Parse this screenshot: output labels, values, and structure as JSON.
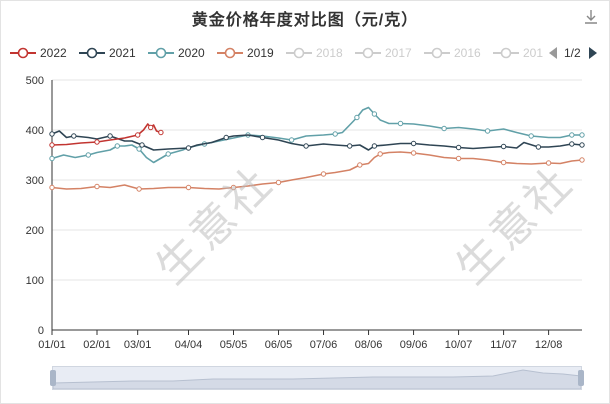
{
  "title": "黄金价格年度对比图（元/克）",
  "toolbar": {
    "download_icon": "download-icon"
  },
  "legend": {
    "items": [
      {
        "label": "2022",
        "color": "#c23531",
        "active": true
      },
      {
        "label": "2021",
        "color": "#2f4554",
        "active": true
      },
      {
        "label": "2020",
        "color": "#61a0a8",
        "active": true
      },
      {
        "label": "2019",
        "color": "#d48265",
        "active": true
      },
      {
        "label": "2018",
        "color": "#cccccc",
        "active": false
      },
      {
        "label": "2017",
        "color": "#cccccc",
        "active": false
      },
      {
        "label": "2016",
        "color": "#cccccc",
        "active": false
      },
      {
        "label": "201",
        "color": "#cccccc",
        "active": false
      }
    ],
    "page": "1/2"
  },
  "watermark": "生意社",
  "chart_data": {
    "type": "line",
    "ylim": [
      0,
      500
    ],
    "yticks": [
      0,
      100,
      200,
      300,
      400,
      500
    ],
    "x_ticks": [
      "01/01",
      "02/01",
      "03/01",
      "04/04",
      "05/05",
      "06/05",
      "07/06",
      "08/06",
      "09/06",
      "10/07",
      "11/07",
      "12/08"
    ],
    "x_day_range": [
      0,
      365
    ],
    "x_tick_days": [
      0,
      31,
      59,
      94,
      125,
      156,
      187,
      218,
      249,
      280,
      311,
      342
    ],
    "series": [
      {
        "name": "2022",
        "color": "#c23531",
        "points": [
          [
            0,
            370
          ],
          [
            10,
            371
          ],
          [
            20,
            374
          ],
          [
            31,
            376
          ],
          [
            40,
            380
          ],
          [
            50,
            384
          ],
          [
            59,
            390
          ],
          [
            63,
            400
          ],
          [
            66,
            412
          ],
          [
            68,
            405
          ],
          [
            70,
            410
          ],
          [
            72,
            398
          ],
          [
            75,
            395
          ]
        ]
      },
      {
        "name": "2021",
        "color": "#2f4554",
        "points": [
          [
            0,
            392
          ],
          [
            5,
            398
          ],
          [
            10,
            385
          ],
          [
            15,
            388
          ],
          [
            25,
            385
          ],
          [
            31,
            382
          ],
          [
            40,
            388
          ],
          [
            50,
            378
          ],
          [
            55,
            378
          ],
          [
            62,
            370
          ],
          [
            70,
            360
          ],
          [
            80,
            362
          ],
          [
            94,
            364
          ],
          [
            100,
            370
          ],
          [
            110,
            375
          ],
          [
            120,
            385
          ],
          [
            125,
            388
          ],
          [
            135,
            390
          ],
          [
            145,
            385
          ],
          [
            156,
            380
          ],
          [
            165,
            373
          ],
          [
            175,
            368
          ],
          [
            187,
            372
          ],
          [
            195,
            370
          ],
          [
            205,
            368
          ],
          [
            212,
            370
          ],
          [
            218,
            360
          ],
          [
            222,
            368
          ],
          [
            230,
            370
          ],
          [
            240,
            373
          ],
          [
            249,
            373
          ],
          [
            260,
            370
          ],
          [
            270,
            368
          ],
          [
            280,
            365
          ],
          [
            290,
            363
          ],
          [
            300,
            365
          ],
          [
            311,
            367
          ],
          [
            320,
            364
          ],
          [
            325,
            375
          ],
          [
            335,
            366
          ],
          [
            342,
            366
          ],
          [
            350,
            368
          ],
          [
            358,
            372
          ],
          [
            365,
            370
          ]
        ]
      },
      {
        "name": "2020",
        "color": "#61a0a8",
        "points": [
          [
            0,
            343
          ],
          [
            8,
            350
          ],
          [
            16,
            345
          ],
          [
            25,
            350
          ],
          [
            31,
            355
          ],
          [
            40,
            360
          ],
          [
            45,
            368
          ],
          [
            50,
            368
          ],
          [
            55,
            370
          ],
          [
            60,
            362
          ],
          [
            65,
            345
          ],
          [
            70,
            335
          ],
          [
            80,
            352
          ],
          [
            90,
            360
          ],
          [
            94,
            365
          ],
          [
            105,
            372
          ],
          [
            115,
            378
          ],
          [
            125,
            384
          ],
          [
            135,
            390
          ],
          [
            145,
            388
          ],
          [
            156,
            384
          ],
          [
            165,
            380
          ],
          [
            175,
            388
          ],
          [
            187,
            390
          ],
          [
            195,
            392
          ],
          [
            200,
            395
          ],
          [
            205,
            410
          ],
          [
            210,
            425
          ],
          [
            214,
            440
          ],
          [
            218,
            445
          ],
          [
            222,
            432
          ],
          [
            226,
            420
          ],
          [
            232,
            413
          ],
          [
            240,
            413
          ],
          [
            249,
            412
          ],
          [
            260,
            408
          ],
          [
            270,
            403
          ],
          [
            280,
            405
          ],
          [
            290,
            402
          ],
          [
            300,
            398
          ],
          [
            311,
            402
          ],
          [
            320,
            395
          ],
          [
            330,
            388
          ],
          [
            342,
            385
          ],
          [
            350,
            385
          ],
          [
            358,
            390
          ],
          [
            365,
            390
          ]
        ]
      },
      {
        "name": "2019",
        "color": "#d48265",
        "points": [
          [
            0,
            285
          ],
          [
            10,
            282
          ],
          [
            20,
            283
          ],
          [
            31,
            287
          ],
          [
            40,
            285
          ],
          [
            50,
            290
          ],
          [
            60,
            282
          ],
          [
            70,
            283
          ],
          [
            80,
            285
          ],
          [
            94,
            285
          ],
          [
            105,
            283
          ],
          [
            115,
            282
          ],
          [
            125,
            285
          ],
          [
            135,
            288
          ],
          [
            145,
            292
          ],
          [
            156,
            295
          ],
          [
            165,
            300
          ],
          [
            175,
            305
          ],
          [
            187,
            312
          ],
          [
            195,
            315
          ],
          [
            205,
            320
          ],
          [
            212,
            330
          ],
          [
            218,
            333
          ],
          [
            222,
            345
          ],
          [
            226,
            352
          ],
          [
            232,
            355
          ],
          [
            240,
            356
          ],
          [
            249,
            354
          ],
          [
            260,
            350
          ],
          [
            270,
            345
          ],
          [
            280,
            343
          ],
          [
            290,
            343
          ],
          [
            300,
            340
          ],
          [
            311,
            335
          ],
          [
            320,
            333
          ],
          [
            330,
            332
          ],
          [
            342,
            334
          ],
          [
            350,
            333
          ],
          [
            358,
            338
          ],
          [
            365,
            340
          ]
        ]
      }
    ]
  },
  "datazoom": {
    "range": [
      0,
      100
    ]
  }
}
